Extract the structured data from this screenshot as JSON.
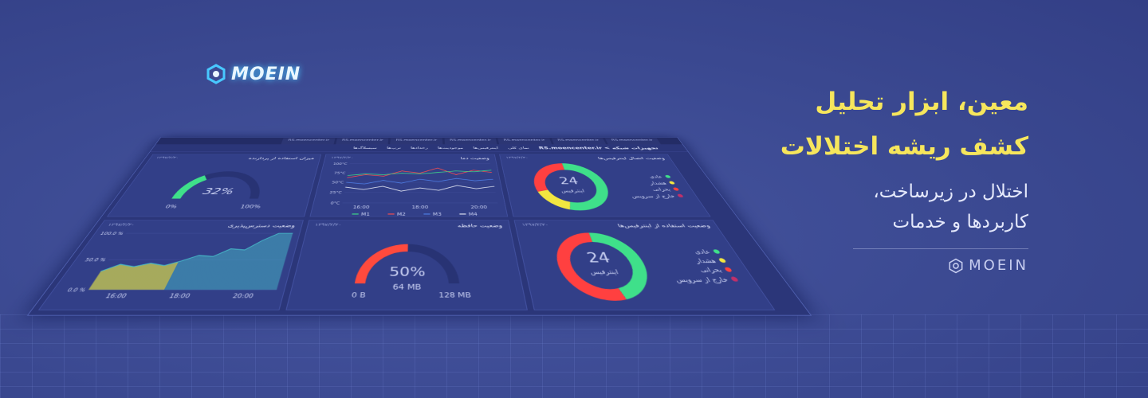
{
  "logo": "MOEIN",
  "headline": [
    "معین، ابزار تحلیل",
    "کشف ریشه اختلالات"
  ],
  "subtitle": [
    "اختلال در زیرساخت،",
    "کاربردها و خدمات"
  ],
  "brand": "MOEIN",
  "dashboard": {
    "browser_tab": "RS.moencenter.ir",
    "breadcrumb": "تجهیزات شبکه > RS.moencenter.ir",
    "tabs": [
      "نمای کلی",
      "اینترفیس‌ها",
      "موجودیت‌ها",
      "رخدادها",
      "ترپ‌ها",
      "سیسلاگ‌ها"
    ],
    "cpu": {
      "title": "میزان استفاده از پردازنده",
      "date": "۱۳۹۷/۳/۲۰",
      "color": "#3fe08a",
      "value": 32,
      "value_label": "32%",
      "min": {
        "value": 0,
        "label": "0%"
      },
      "max": {
        "value": 100,
        "label": "100%"
      }
    },
    "temperature": {
      "title": "وضعیت دما",
      "date": "۱۳۹۷/۳/۲۰",
      "categories": [
        null,
        "16:00",
        null,
        null,
        "18:00",
        null,
        null,
        "20:00",
        null
      ],
      "ylim": [
        0,
        100
      ],
      "yticks": [
        {
          "value": 0,
          "label": "0°C"
        },
        {
          "value": 25,
          "label": "25°C"
        },
        {
          "value": 50,
          "label": "50°C"
        },
        {
          "value": 75,
          "label": "75°C"
        },
        {
          "value": 100,
          "label": "100°C"
        }
      ],
      "series": [
        {
          "name": "M4",
          "color": "#e6e9f5",
          "values": [
            38,
            32,
            40,
            28,
            36,
            30,
            42,
            34,
            40
          ]
        },
        {
          "name": "M3",
          "color": "#4f7fe8",
          "values": [
            50,
            46,
            55,
            48,
            58,
            52,
            60,
            54,
            58
          ]
        },
        {
          "name": "M2",
          "color": "#ff4d4d",
          "values": [
            62,
            70,
            66,
            80,
            74,
            88,
            70,
            82,
            76
          ]
        },
        {
          "name": "M1",
          "color": "#3fe08a",
          "values": [
            68,
            72,
            70,
            74,
            72,
            76,
            80,
            78,
            82
          ]
        }
      ]
    },
    "interfaces_status": {
      "title": "وضعیت اتصال اینترفیس‌ها",
      "date": "۱۳۹۷/۳/۲۰",
      "center": "24",
      "center_label": "اینترفیس",
      "legend": [
        "عادی",
        "هشدار",
        "بحرانی",
        "خارج از سرویس"
      ],
      "colors": [
        "#3fe08a",
        "#f2e640",
        "#ff4040",
        "#c0306a"
      ],
      "values": [
        13,
        4,
        7,
        0
      ]
    },
    "availability": {
      "title": "وضعیت دسترس‌پذیری",
      "date": "۱۳۹۷/۳/۲۰",
      "categories": [
        null,
        null,
        "16:00",
        null,
        null,
        null,
        "18:00",
        null,
        null,
        null,
        "20:00",
        null,
        null
      ],
      "ylim": [
        0,
        100
      ],
      "yticks": [
        {
          "value": 0,
          "label": "0.0 %"
        },
        {
          "value": 50,
          "label": "50.0 %"
        },
        {
          "value": 100,
          "label": "100.0 %"
        }
      ],
      "color": "#46b8c8",
      "values": [
        30,
        42,
        38,
        44,
        40,
        48,
        58,
        56,
        70,
        68,
        86,
        100,
        100
      ]
    },
    "memory": {
      "title": "وضعیت حافظه",
      "date": "۱۳۹۷/۳/۲۰",
      "color": "#ff4a3d",
      "value": 64,
      "value_label": "64 MB",
      "percent_label": "50%",
      "min": {
        "value": 0,
        "label": "0 B"
      },
      "max": {
        "value": 128,
        "label": "128 MB"
      }
    },
    "interfaces_usage": {
      "title": "وضعیت استفاده از اینترفیس‌ها",
      "date": "۱۳۹۷/۳/۲۰",
      "center": "24",
      "center_label": "اینترفیس",
      "legend": [
        "عادی",
        "هشدار",
        "بحرانی",
        "خارج از سرویس"
      ],
      "colors": [
        "#3fe08a",
        "#f2e640",
        "#ff4040",
        "#c0306a"
      ],
      "values": [
        11,
        0,
        13,
        0
      ]
    }
  }
}
